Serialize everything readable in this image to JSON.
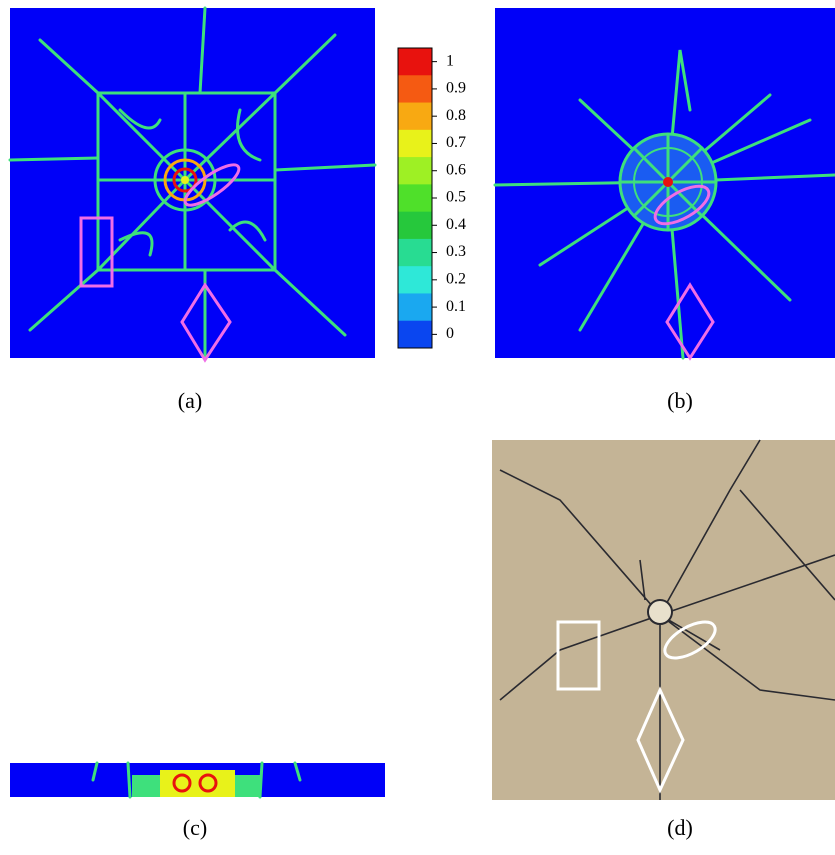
{
  "panel_labels": [
    "(a)",
    "(b)",
    "(c)",
    "(d)"
  ],
  "colorbar": {
    "ticks": [
      1,
      0.9,
      0.8,
      0.7,
      0.6,
      0.5,
      0.4,
      0.3,
      0.2,
      0.1,
      0
    ],
    "colors": [
      "#e8120e",
      "#f55a12",
      "#f8a912",
      "#e8f21a",
      "#9ef024",
      "#4fe02a",
      "#26c83c",
      "#28dc92",
      "#2ee8d8",
      "#1aa8f0",
      "#0a46f0"
    ]
  }
}
